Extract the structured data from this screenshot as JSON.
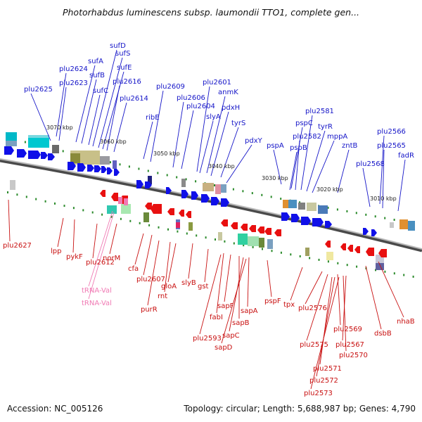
{
  "title": "Photorhabdus luminescens subsp. laumondii TTO1, complete gen...",
  "footer": {
    "accession": "Accession: NC_005126",
    "summary": "Topology: circular; Length: 5,688,987 bp; Genes: 4,790"
  },
  "colors": {
    "forward_gene": "#1010e8",
    "reverse_gene": "#e81010",
    "trna": "#f07ab4",
    "backbone": "#7a7a7a",
    "tick": "#2a8a2a"
  },
  "kbp_labels": [
    "3070 kbp",
    "3060 kbp",
    "3050 kbp",
    "3040 kbp",
    "3030 kbp",
    "3020 kbp",
    "3010 kbp"
  ],
  "forward_labels": [
    "plu2625",
    "plu2624",
    "plu2623",
    "sufA",
    "sufB",
    "sufC",
    "sufD",
    "sufS",
    "sufE",
    "plu2616",
    "plu2614",
    "ribE",
    "plu2609",
    "plu2606",
    "plu2604",
    "plu2601",
    "anmK",
    "slyA",
    "pdxH",
    "tyrS",
    "pdxY",
    "pspA",
    "pspC",
    "plu2581",
    "pspB",
    "plu2582",
    "tyrR",
    "mppA",
    "zntB",
    "plu2568",
    "plu2566",
    "plu2565",
    "fadR"
  ],
  "reverse_labels": [
    "plu2627",
    "lpp",
    "pykF",
    "plu2612",
    "norM",
    "cfa",
    "plu2607",
    "purR",
    "rnt",
    "gloA",
    "slyB",
    "gst",
    "fabI",
    "sapF",
    "sapB",
    "sapA",
    "plu2593",
    "sapC",
    "sapD",
    "pspF",
    "tpx",
    "plu2576",
    "plu2575",
    "plu2569",
    "plu2570",
    "plu2567",
    "plu2571",
    "plu2572",
    "plu2573",
    "dsbB",
    "nhaB"
  ],
  "trna_labels": [
    "tRNA-Val",
    "tRNA-Val"
  ]
}
